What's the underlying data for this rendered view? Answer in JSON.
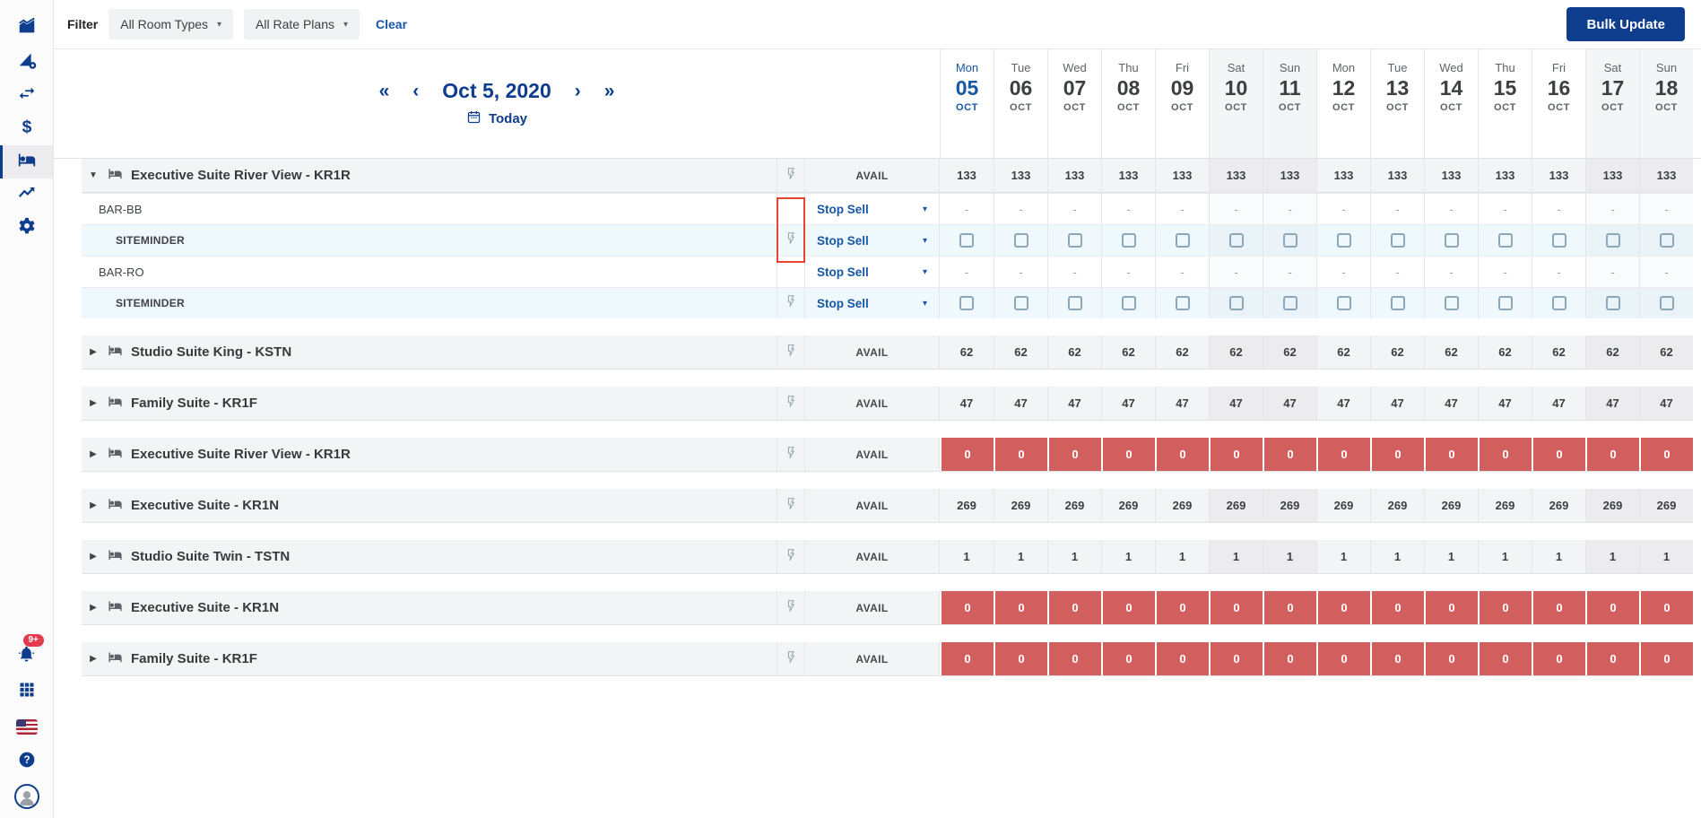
{
  "colors": {
    "navy": "#0d3d8c",
    "accent": "#1757a6",
    "red_cell": "#d05f5e",
    "annotation": "#e8442f",
    "siteminder_row_bg": "#eff8fc",
    "badge": "#e23b4e"
  },
  "sidebar": {
    "selected": "rooms-rates",
    "items": [
      {
        "id": "dashboard",
        "icon": "area-chart-icon"
      },
      {
        "id": "performance",
        "icon": "flag-gear-icon"
      },
      {
        "id": "distribution",
        "icon": "swap-arrows-icon"
      },
      {
        "id": "payments",
        "icon": "dollar-icon"
      },
      {
        "id": "rooms-rates",
        "icon": "bed-icon"
      },
      {
        "id": "insights",
        "icon": "trending-up-icon"
      },
      {
        "id": "settings",
        "icon": "gear-icon"
      }
    ],
    "notification_badge": "9+"
  },
  "filter_bar": {
    "label": "Filter",
    "room_types": "All Room Types",
    "rate_plans": "All Rate Plans",
    "clear": "Clear",
    "bulk_update": "Bulk Update"
  },
  "calendar": {
    "first": "«",
    "prev": "‹",
    "title": "Oct 5, 2020",
    "next": "›",
    "last": "»",
    "today": "Today",
    "days": [
      {
        "dow": "Mon",
        "day": "05",
        "month": "OCT",
        "weekend": false,
        "today": true
      },
      {
        "dow": "Tue",
        "day": "06",
        "month": "OCT",
        "weekend": false,
        "today": false
      },
      {
        "dow": "Wed",
        "day": "07",
        "month": "OCT",
        "weekend": false,
        "today": false
      },
      {
        "dow": "Thu",
        "day": "08",
        "month": "OCT",
        "weekend": false,
        "today": false
      },
      {
        "dow": "Fri",
        "day": "09",
        "month": "OCT",
        "weekend": false,
        "today": false
      },
      {
        "dow": "Sat",
        "day": "10",
        "month": "OCT",
        "weekend": true,
        "today": false
      },
      {
        "dow": "Sun",
        "day": "11",
        "month": "OCT",
        "weekend": true,
        "today": false
      },
      {
        "dow": "Mon",
        "day": "12",
        "month": "OCT",
        "weekend": false,
        "today": false
      },
      {
        "dow": "Tue",
        "day": "13",
        "month": "OCT",
        "weekend": false,
        "today": false
      },
      {
        "dow": "Wed",
        "day": "14",
        "month": "OCT",
        "weekend": false,
        "today": false
      },
      {
        "dow": "Thu",
        "day": "15",
        "month": "OCT",
        "weekend": false,
        "today": false
      },
      {
        "dow": "Fri",
        "day": "16",
        "month": "OCT",
        "weekend": false,
        "today": false
      },
      {
        "dow": "Sat",
        "day": "17",
        "month": "OCT",
        "weekend": true,
        "today": false
      },
      {
        "dow": "Sun",
        "day": "18",
        "month": "OCT",
        "weekend": true,
        "today": false
      }
    ]
  },
  "table": {
    "avail_label": "AVAIL",
    "stop_sell_label": "Stop Sell",
    "dash": "-",
    "rooms": [
      {
        "name": "Executive Suite River View - KR1R",
        "avail": "133",
        "zero": false,
        "expanded": true,
        "sub_rows": [
          {
            "kind": "rate",
            "name": "BAR-BB"
          },
          {
            "kind": "channel",
            "name": "SITEMINDER"
          },
          {
            "kind": "rate",
            "name": "BAR-RO"
          },
          {
            "kind": "channel",
            "name": "SITEMINDER"
          }
        ]
      },
      {
        "name": "Studio Suite King - KSTN",
        "avail": "62",
        "zero": false,
        "expanded": false
      },
      {
        "name": "Family Suite - KR1F",
        "avail": "47",
        "zero": false,
        "expanded": false
      },
      {
        "name": "Executive Suite River View - KR1R",
        "avail": "0",
        "zero": true,
        "expanded": false
      },
      {
        "name": "Executive Suite - KR1N",
        "avail": "269",
        "zero": false,
        "expanded": false
      },
      {
        "name": "Studio Suite Twin - TSTN",
        "avail": "1",
        "zero": false,
        "expanded": false
      },
      {
        "name": "Executive Suite - KR1N",
        "avail": "0",
        "zero": true,
        "expanded": false
      },
      {
        "name": "Family Suite - KR1F",
        "avail": "0",
        "zero": true,
        "expanded": false
      }
    ]
  }
}
